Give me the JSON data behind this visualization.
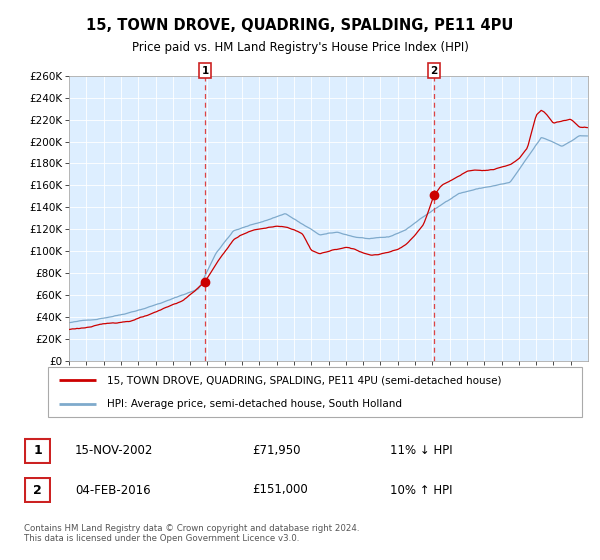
{
  "title": "15, TOWN DROVE, QUADRING, SPALDING, PE11 4PU",
  "subtitle": "Price paid vs. HM Land Registry's House Price Index (HPI)",
  "legend_property": "15, TOWN DROVE, QUADRING, SPALDING, PE11 4PU (semi-detached house)",
  "legend_hpi": "HPI: Average price, semi-detached house, South Holland",
  "annotation1_date": "15-NOV-2002",
  "annotation1_price": "£71,950",
  "annotation1_hpi": "11% ↓ HPI",
  "annotation2_date": "04-FEB-2016",
  "annotation2_price": "£151,000",
  "annotation2_hpi": "10% ↑ HPI",
  "footer": "Contains HM Land Registry data © Crown copyright and database right 2024.\nThis data is licensed under the Open Government Licence v3.0.",
  "property_color": "#cc0000",
  "hpi_color": "#7faacc",
  "background_color": "#ddeeff",
  "sale1_year": 2002.875,
  "sale1_value": 71950,
  "sale2_year": 2016.085,
  "sale2_value": 151000,
  "ylim": [
    0,
    260000
  ],
  "yticks": [
    0,
    20000,
    40000,
    60000,
    80000,
    100000,
    120000,
    140000,
    160000,
    180000,
    200000,
    220000,
    240000,
    260000
  ]
}
